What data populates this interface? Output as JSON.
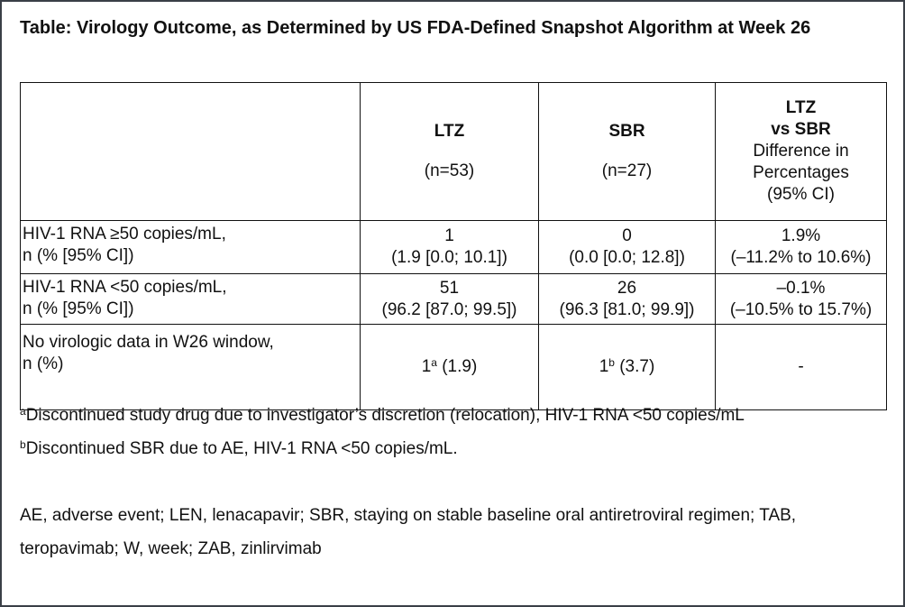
{
  "title": "Table: Virology Outcome, as Determined by US FDA-Defined Snapshot Algorithm at Week 26",
  "table": {
    "header": [
      {
        "bold": [
          "LTZ"
        ],
        "normal": [
          "(n=53)"
        ]
      },
      {
        "bold": [
          "SBR"
        ],
        "normal": [
          "(n=27)"
        ]
      },
      {
        "bold": [
          "LTZ",
          "vs SBR"
        ],
        "normal": [
          "Difference in",
          "Percentages",
          "(95% CI)"
        ]
      }
    ],
    "rows": [
      {
        "label": [
          "HIV-1 RNA ≥50 copies/mL,",
          "n (% [95% CI])"
        ],
        "cells": [
          [
            "1",
            "(1.9 [0.0; 10.1])"
          ],
          [
            "0",
            "(0.0 [0.0; 12.8])"
          ],
          [
            "1.9%",
            "(–11.2% to 10.6%)"
          ]
        ]
      },
      {
        "label": [
          "HIV-1 RNA <50 copies/mL,",
          "n (% [95% CI])"
        ],
        "cells": [
          [
            "51",
            "(96.2 [87.0; 99.5])"
          ],
          [
            "26",
            "(96.3 [81.0; 99.9])"
          ],
          [
            "–0.1%",
            "(–10.5% to 15.7%)"
          ]
        ]
      },
      {
        "label": [
          "No virologic data in W26 window,",
          "n (%)"
        ],
        "cells": [
          {
            "value": "1",
            "sup": "a",
            "rest": "(1.9)"
          },
          {
            "value": "1",
            "sup": "b",
            "rest": "(3.7)"
          },
          "-"
        ]
      }
    ]
  },
  "footnotes": [
    {
      "mark": "a",
      "text": "Discontinued study drug due to investigator’s discretion (relocation), HIV-1 RNA <50 copies/mL"
    },
    {
      "mark": "b",
      "text": "Discontinued SBR due to AE, HIV-1 RNA <50 copies/mL."
    }
  ],
  "abbreviations": "AE, adverse event; LEN, lenacapavir; SBR, staying on stable baseline oral antiretroviral regimen; TAB, teropavimab; W, week; ZAB, zinlirvimab"
}
